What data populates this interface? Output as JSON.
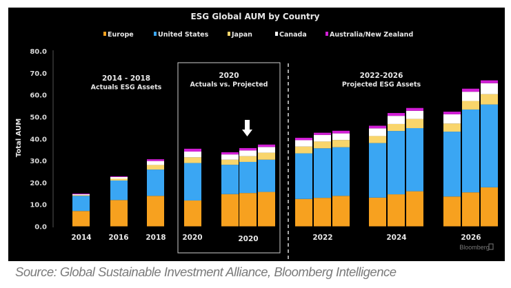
{
  "chart_data": {
    "type": "bar",
    "stacked": true,
    "title": "ESG Global AUM by Country",
    "xlabel": "",
    "ylabel": "Total AUM",
    "ylim": [
      0,
      80
    ],
    "yticks": [
      "0.0",
      "10.0",
      "20.0",
      "30.0",
      "40.0",
      "50.0",
      "60.0",
      "70.0",
      "80.0"
    ],
    "legend_position": "top-center",
    "legend": [
      "Europe",
      "United States",
      "Japan",
      "Canada",
      "Australia/New Zealand"
    ],
    "colors": {
      "Europe": "#f7a11f",
      "United States": "#3aa6f3",
      "Japan": "#f9d56b",
      "Canada": "#ffffff",
      "Australia/New Zealand": "#d21fd6"
    },
    "groups": [
      {
        "label": "2014",
        "bars": [
          {
            "name": "2014",
            "values": [
              7.0,
              6.9,
              0.3,
              0.4,
              0.3
            ]
          }
        ]
      },
      {
        "label": "2016",
        "bars": [
          {
            "name": "2016",
            "values": [
              12.0,
              8.9,
              0.8,
              0.8,
              0.3
            ]
          }
        ]
      },
      {
        "label": "2018",
        "bars": [
          {
            "name": "2018",
            "values": [
              13.9,
              12.0,
              2.1,
              1.8,
              0.8
            ]
          }
        ]
      },
      {
        "label": "2020",
        "bars": [
          {
            "name": "2020 actual",
            "values": [
              11.8,
              17.1,
              2.6,
              2.6,
              1.3
            ]
          }
        ]
      },
      {
        "label": "2020",
        "bars": [
          {
            "name": "2020 projected low",
            "values": [
              14.7,
              13.4,
              2.3,
              2.4,
              1.0
            ]
          },
          {
            "name": "2020 projected mid",
            "values": [
              15.2,
              14.2,
              2.6,
              2.6,
              1.1
            ]
          },
          {
            "name": "2020 projected high",
            "values": [
              15.7,
              14.7,
              3.2,
              2.6,
              1.1
            ]
          }
        ]
      },
      {
        "label": "2022",
        "bars": [
          {
            "name": "2022 low",
            "values": [
              12.5,
              20.8,
              3.1,
              2.9,
              1.1
            ]
          },
          {
            "name": "2022 mid",
            "values": [
              13.0,
              22.6,
              3.1,
              3.0,
              1.0
            ]
          },
          {
            "name": "2022 high",
            "values": [
              13.9,
              22.2,
              3.3,
              3.0,
              1.2
            ]
          }
        ]
      },
      {
        "label": "2024",
        "bars": [
          {
            "name": "2024 low",
            "values": [
              13.1,
              24.9,
              3.2,
              3.5,
              1.2
            ]
          },
          {
            "name": "2024 mid",
            "values": [
              14.6,
              28.9,
              3.2,
              3.7,
              1.3
            ]
          },
          {
            "name": "2024 high",
            "values": [
              16.0,
              28.8,
              4.2,
              3.7,
              1.3
            ]
          }
        ]
      },
      {
        "label": "2026",
        "bars": [
          {
            "name": "2026 low",
            "values": [
              13.6,
              29.6,
              3.7,
              4.2,
              1.2
            ]
          },
          {
            "name": "2026 mid",
            "values": [
              15.5,
              37.8,
              3.9,
              4.2,
              1.4
            ]
          },
          {
            "name": "2026 high",
            "values": [
              17.8,
              37.8,
              4.7,
              5.0,
              1.3
            ]
          }
        ]
      }
    ],
    "annotations": [
      {
        "id": "actuals",
        "lines": [
          "2014 - 2018",
          "Actuals ESG Assets"
        ]
      },
      {
        "id": "vs",
        "lines": [
          "2020",
          "Actuals vs. Projected"
        ]
      },
      {
        "id": "projected",
        "lines": [
          "2022-2026",
          "Projected ESG Assets"
        ]
      }
    ],
    "watermark": "Bloomberg"
  },
  "source": "Source: Global Sustainable Investment Alliance, Bloomberg Intelligence"
}
